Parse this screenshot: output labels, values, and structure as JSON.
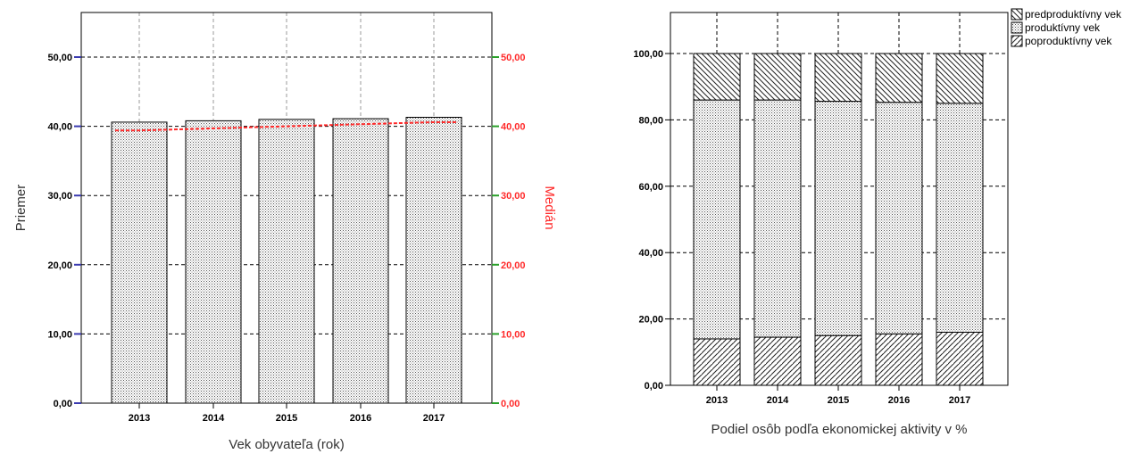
{
  "chart_data": [
    {
      "type": "bar",
      "categories": [
        "2013",
        "2014",
        "2015",
        "2016",
        "2017"
      ],
      "series": [
        {
          "name": "Priemer",
          "values": [
            40.6,
            40.8,
            41.0,
            41.1,
            41.3
          ]
        },
        {
          "name": "Medián",
          "type": "line",
          "values": [
            39.4,
            39.7,
            40.0,
            40.3,
            40.6
          ]
        }
      ],
      "ylim": [
        0,
        55
      ],
      "y_ticks": [
        "0,00",
        "10,00",
        "20,00",
        "30,00",
        "40,00",
        "50,00"
      ],
      "y2_ticks": [
        "0,00",
        "10,00",
        "20,00",
        "30,00",
        "40,00",
        "50,00"
      ],
      "xlabel": "Vek obyvateľa (rok)",
      "ylabel": "Priemer",
      "y2label": "Medián",
      "grid": true,
      "colors": {
        "median_line": "#ff2a2a",
        "right_axis": "#ff2a2a",
        "left_tick_mark": "#3a3ab0",
        "right_tick_mark": "#2aa02a"
      }
    },
    {
      "type": "bar",
      "stacked": true,
      "categories": [
        "2013",
        "2014",
        "2015",
        "2016",
        "2017"
      ],
      "series": [
        {
          "name": "poproduktívny vek",
          "values": [
            14.0,
            14.5,
            15.0,
            15.5,
            16.0
          ]
        },
        {
          "name": "produktívny vek",
          "values": [
            72.0,
            71.5,
            70.6,
            69.8,
            69.0
          ]
        },
        {
          "name": "predproduktívny vek",
          "values": [
            14.0,
            14.0,
            14.4,
            14.7,
            15.0
          ]
        }
      ],
      "ylim": [
        0,
        110
      ],
      "y_ticks": [
        "0,00",
        "20,00",
        "40,00",
        "60,00",
        "80,00",
        "100,00"
      ],
      "xlabel": "Podiel osôb podľa ekonomickej aktivity v %",
      "legend_position": "top-right",
      "grid": true
    }
  ]
}
